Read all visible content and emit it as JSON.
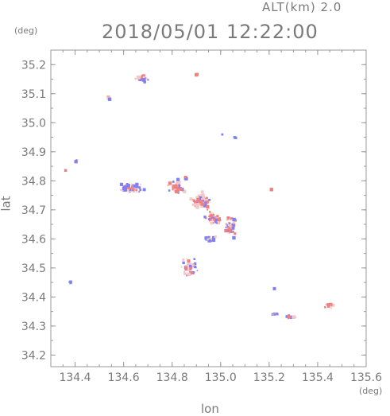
{
  "header": {
    "altitude": "ALT(km) 2.0",
    "datetime": "2018/05/01 12:22:00",
    "y_unit": "(deg)",
    "x_unit": "(deg)",
    "x_label": "lon",
    "y_label": "lat"
  },
  "chart_data": {
    "type": "scatter",
    "xlim": [
      134.3,
      135.6
    ],
    "ylim": [
      34.16,
      35.25
    ],
    "x_ticks": [
      "134.4",
      "134.6",
      "134.8",
      "135.0",
      "135.2",
      "135.4",
      "135.6"
    ],
    "y_ticks": [
      "34.2",
      "34.3",
      "34.4",
      "34.5",
      "34.6",
      "34.7",
      "34.8",
      "34.9",
      "35.0",
      "35.1",
      "35.2"
    ],
    "colors": {
      "positive": "#f08080",
      "negative": "#8080f0",
      "faint": "#f4c8c8"
    },
    "clusters": [
      {
        "lon": 134.68,
        "lat": 35.15,
        "spread": [
          0.04,
          0.02
        ],
        "n": 22
      },
      {
        "lon": 134.54,
        "lat": 35.085,
        "spread": [
          0.01,
          0.008
        ],
        "n": 5
      },
      {
        "lon": 134.9,
        "lat": 35.165,
        "spread": [
          0.005,
          0.004
        ],
        "n": 2
      },
      {
        "lon": 134.36,
        "lat": 34.835,
        "spread": [
          0.005,
          0.004
        ],
        "n": 2
      },
      {
        "lon": 134.405,
        "lat": 34.87,
        "spread": [
          0.005,
          0.01
        ],
        "n": 3
      },
      {
        "lon": 134.38,
        "lat": 34.45,
        "spread": [
          0.006,
          0.005
        ],
        "n": 4
      },
      {
        "lon": 134.63,
        "lat": 34.775,
        "spread": [
          0.06,
          0.02
        ],
        "n": 60
      },
      {
        "lon": 134.82,
        "lat": 34.78,
        "spread": [
          0.04,
          0.03
        ],
        "n": 45
      },
      {
        "lon": 134.92,
        "lat": 34.73,
        "spread": [
          0.05,
          0.04
        ],
        "n": 70
      },
      {
        "lon": 134.97,
        "lat": 34.67,
        "spread": [
          0.05,
          0.03
        ],
        "n": 40
      },
      {
        "lon": 135.04,
        "lat": 34.64,
        "spread": [
          0.03,
          0.05
        ],
        "n": 40
      },
      {
        "lon": 134.95,
        "lat": 34.6,
        "spread": [
          0.04,
          0.015
        ],
        "n": 15
      },
      {
        "lon": 134.87,
        "lat": 34.5,
        "spread": [
          0.05,
          0.04
        ],
        "n": 45
      },
      {
        "lon": 135.01,
        "lat": 34.96,
        "spread": [
          0.006,
          0.004
        ],
        "n": 2
      },
      {
        "lon": 135.06,
        "lat": 34.95,
        "spread": [
          0.006,
          0.004
        ],
        "n": 2
      },
      {
        "lon": 134.86,
        "lat": 34.81,
        "spread": [
          0.01,
          0.01
        ],
        "n": 4
      },
      {
        "lon": 135.22,
        "lat": 34.34,
        "spread": [
          0.02,
          0.008
        ],
        "n": 10
      },
      {
        "lon": 135.29,
        "lat": 34.33,
        "spread": [
          0.03,
          0.008
        ],
        "n": 10
      },
      {
        "lon": 135.45,
        "lat": 34.37,
        "spread": [
          0.03,
          0.012
        ],
        "n": 14
      },
      {
        "lon": 135.21,
        "lat": 34.77,
        "spread": [
          0.01,
          0.006
        ],
        "n": 3
      },
      {
        "lon": 135.22,
        "lat": 34.43,
        "spread": [
          0.008,
          0.004
        ],
        "n": 2
      }
    ]
  }
}
